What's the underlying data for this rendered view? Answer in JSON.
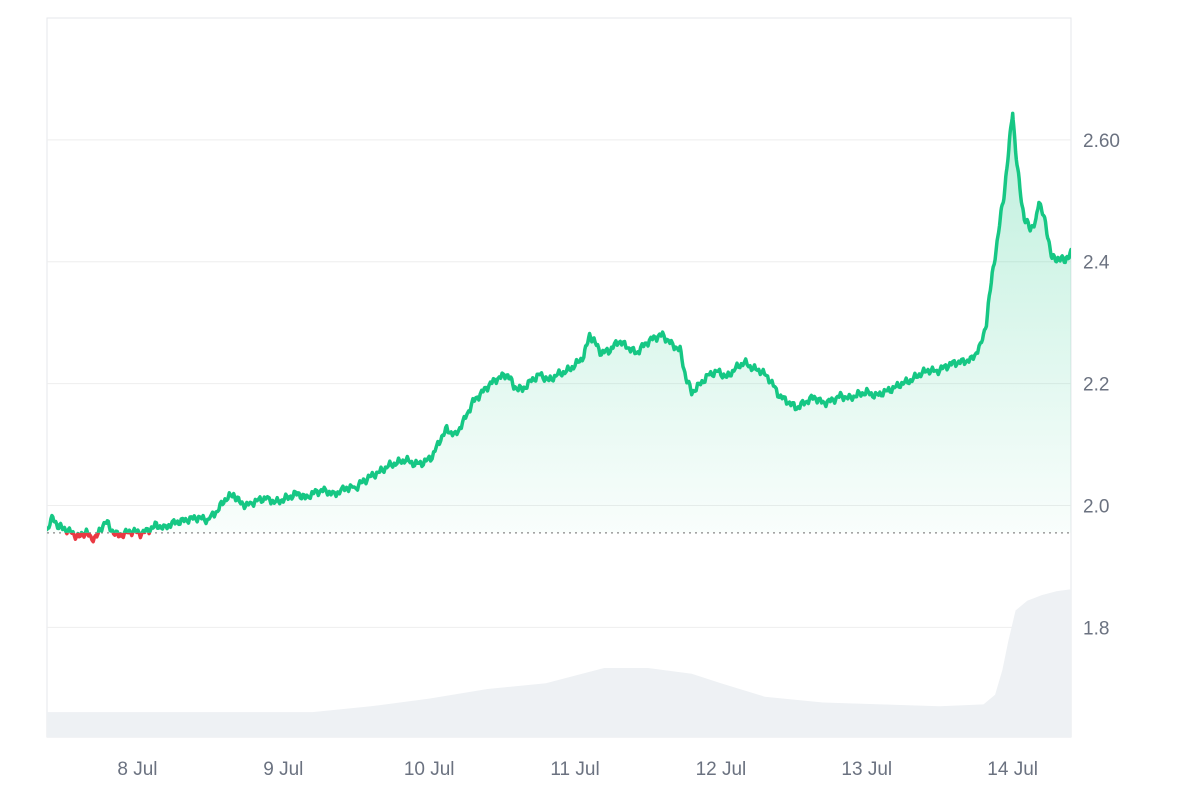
{
  "chart_data": {
    "type": "area",
    "title": "",
    "xlabel": "",
    "ylabel": "",
    "x_ticks": [
      "8 Jul",
      "9 Jul",
      "10 Jul",
      "11 Jul",
      "12 Jul",
      "13 Jul",
      "14 Jul"
    ],
    "y_ticks": [
      "2.60",
      "2.4",
      "2.2",
      "2.0",
      "1.8"
    ],
    "y_tick_values": [
      2.6,
      2.4,
      2.2,
      2.0,
      1.8
    ],
    "ylim": [
      1.62,
      2.8
    ],
    "x_range_days": [
      7.38,
      14.4
    ],
    "baseline": 1.955,
    "grid": "horizontal",
    "legend": "none",
    "colors": {
      "up": "#16c784",
      "down": "#ea3943",
      "area_top": "#16c784",
      "volume": "#eef1f4",
      "grid": "#eeeeee",
      "baseline": "#888888"
    },
    "series": [
      {
        "points": [
          [
            7.38,
            1.96
          ],
          [
            7.42,
            1.98
          ],
          [
            7.46,
            1.965
          ],
          [
            7.5,
            1.962
          ],
          [
            7.55,
            1.955
          ],
          [
            7.6,
            1.948
          ],
          [
            7.65,
            1.958
          ],
          [
            7.68,
            1.944
          ],
          [
            7.73,
            1.952
          ],
          [
            7.78,
            1.975
          ],
          [
            7.82,
            1.96
          ],
          [
            7.87,
            1.95
          ],
          [
            7.92,
            1.955
          ],
          [
            7.97,
            1.958
          ],
          [
            8.02,
            1.954
          ],
          [
            8.08,
            1.96
          ],
          [
            8.13,
            1.968
          ],
          [
            8.18,
            1.963
          ],
          [
            8.25,
            1.972
          ],
          [
            8.3,
            1.974
          ],
          [
            8.36,
            1.978
          ],
          [
            8.42,
            1.98
          ],
          [
            8.48,
            1.976
          ],
          [
            8.55,
            1.992
          ],
          [
            8.6,
            2.01
          ],
          [
            8.66,
            2.018
          ],
          [
            8.7,
            2.005
          ],
          [
            8.75,
            2.0
          ],
          [
            8.82,
            2.008
          ],
          [
            8.88,
            2.012
          ],
          [
            8.95,
            2.005
          ],
          [
            9.0,
            2.01
          ],
          [
            9.05,
            2.015
          ],
          [
            9.1,
            2.02
          ],
          [
            9.15,
            2.012
          ],
          [
            9.22,
            2.022
          ],
          [
            9.28,
            2.025
          ],
          [
            9.35,
            2.018
          ],
          [
            9.42,
            2.028
          ],
          [
            9.5,
            2.03
          ],
          [
            9.55,
            2.04
          ],
          [
            9.6,
            2.048
          ],
          [
            9.66,
            2.055
          ],
          [
            9.72,
            2.065
          ],
          [
            9.78,
            2.07
          ],
          [
            9.84,
            2.075
          ],
          [
            9.9,
            2.068
          ],
          [
            9.96,
            2.07
          ],
          [
            10.02,
            2.08
          ],
          [
            10.08,
            2.11
          ],
          [
            10.12,
            2.125
          ],
          [
            10.18,
            2.115
          ],
          [
            10.24,
            2.14
          ],
          [
            10.3,
            2.17
          ],
          [
            10.36,
            2.185
          ],
          [
            10.42,
            2.2
          ],
          [
            10.48,
            2.21
          ],
          [
            10.54,
            2.215
          ],
          [
            10.58,
            2.195
          ],
          [
            10.64,
            2.19
          ],
          [
            10.7,
            2.205
          ],
          [
            10.76,
            2.215
          ],
          [
            10.82,
            2.205
          ],
          [
            10.88,
            2.215
          ],
          [
            10.94,
            2.22
          ],
          [
            11.0,
            2.23
          ],
          [
            11.06,
            2.245
          ],
          [
            11.1,
            2.28
          ],
          [
            11.13,
            2.27
          ],
          [
            11.18,
            2.25
          ],
          [
            11.24,
            2.255
          ],
          [
            11.3,
            2.27
          ],
          [
            11.36,
            2.26
          ],
          [
            11.42,
            2.25
          ],
          [
            11.48,
            2.265
          ],
          [
            11.54,
            2.275
          ],
          [
            11.6,
            2.28
          ],
          [
            11.66,
            2.265
          ],
          [
            11.72,
            2.255
          ],
          [
            11.76,
            2.21
          ],
          [
            11.8,
            2.185
          ],
          [
            11.86,
            2.2
          ],
          [
            11.92,
            2.215
          ],
          [
            11.98,
            2.22
          ],
          [
            12.04,
            2.21
          ],
          [
            12.1,
            2.225
          ],
          [
            12.16,
            2.235
          ],
          [
            12.22,
            2.225
          ],
          [
            12.28,
            2.22
          ],
          [
            12.34,
            2.205
          ],
          [
            12.4,
            2.18
          ],
          [
            12.46,
            2.17
          ],
          [
            12.52,
            2.16
          ],
          [
            12.58,
            2.17
          ],
          [
            12.64,
            2.178
          ],
          [
            12.7,
            2.168
          ],
          [
            12.76,
            2.172
          ],
          [
            12.82,
            2.18
          ],
          [
            12.88,
            2.176
          ],
          [
            12.94,
            2.182
          ],
          [
            13.0,
            2.186
          ],
          [
            13.06,
            2.18
          ],
          [
            13.12,
            2.186
          ],
          [
            13.18,
            2.192
          ],
          [
            13.24,
            2.2
          ],
          [
            13.3,
            2.205
          ],
          [
            13.36,
            2.215
          ],
          [
            13.42,
            2.222
          ],
          [
            13.48,
            2.22
          ],
          [
            13.54,
            2.228
          ],
          [
            13.6,
            2.234
          ],
          [
            13.66,
            2.236
          ],
          [
            13.72,
            2.24
          ],
          [
            13.78,
            2.262
          ],
          [
            13.82,
            2.3
          ],
          [
            13.86,
            2.38
          ],
          [
            13.9,
            2.44
          ],
          [
            13.92,
            2.48
          ],
          [
            13.94,
            2.51
          ],
          [
            13.96,
            2.55
          ],
          [
            13.98,
            2.6
          ],
          [
            14.0,
            2.65
          ],
          [
            14.02,
            2.58
          ],
          [
            14.05,
            2.52
          ],
          [
            14.08,
            2.47
          ],
          [
            14.12,
            2.455
          ],
          [
            14.16,
            2.465
          ],
          [
            14.18,
            2.5
          ],
          [
            14.21,
            2.48
          ],
          [
            14.24,
            2.44
          ],
          [
            14.27,
            2.41
          ],
          [
            14.3,
            2.4
          ],
          [
            14.33,
            2.41
          ],
          [
            14.36,
            2.398
          ],
          [
            14.4,
            2.42
          ]
        ]
      }
    ],
    "volume_series": {
      "points": [
        [
          7.38,
          0.13
        ],
        [
          8.0,
          0.13
        ],
        [
          8.6,
          0.13
        ],
        [
          9.2,
          0.13
        ],
        [
          9.6,
          0.16
        ],
        [
          10.0,
          0.2
        ],
        [
          10.4,
          0.25
        ],
        [
          10.8,
          0.28
        ],
        [
          11.0,
          0.32
        ],
        [
          11.2,
          0.36
        ],
        [
          11.5,
          0.36
        ],
        [
          11.8,
          0.33
        ],
        [
          12.0,
          0.28
        ],
        [
          12.3,
          0.21
        ],
        [
          12.7,
          0.18
        ],
        [
          13.1,
          0.17
        ],
        [
          13.5,
          0.16
        ],
        [
          13.8,
          0.17
        ],
        [
          13.88,
          0.22
        ],
        [
          13.93,
          0.35
        ],
        [
          13.97,
          0.5
        ],
        [
          14.02,
          0.66
        ],
        [
          14.1,
          0.71
        ],
        [
          14.2,
          0.74
        ],
        [
          14.3,
          0.76
        ],
        [
          14.4,
          0.77
        ]
      ]
    }
  }
}
